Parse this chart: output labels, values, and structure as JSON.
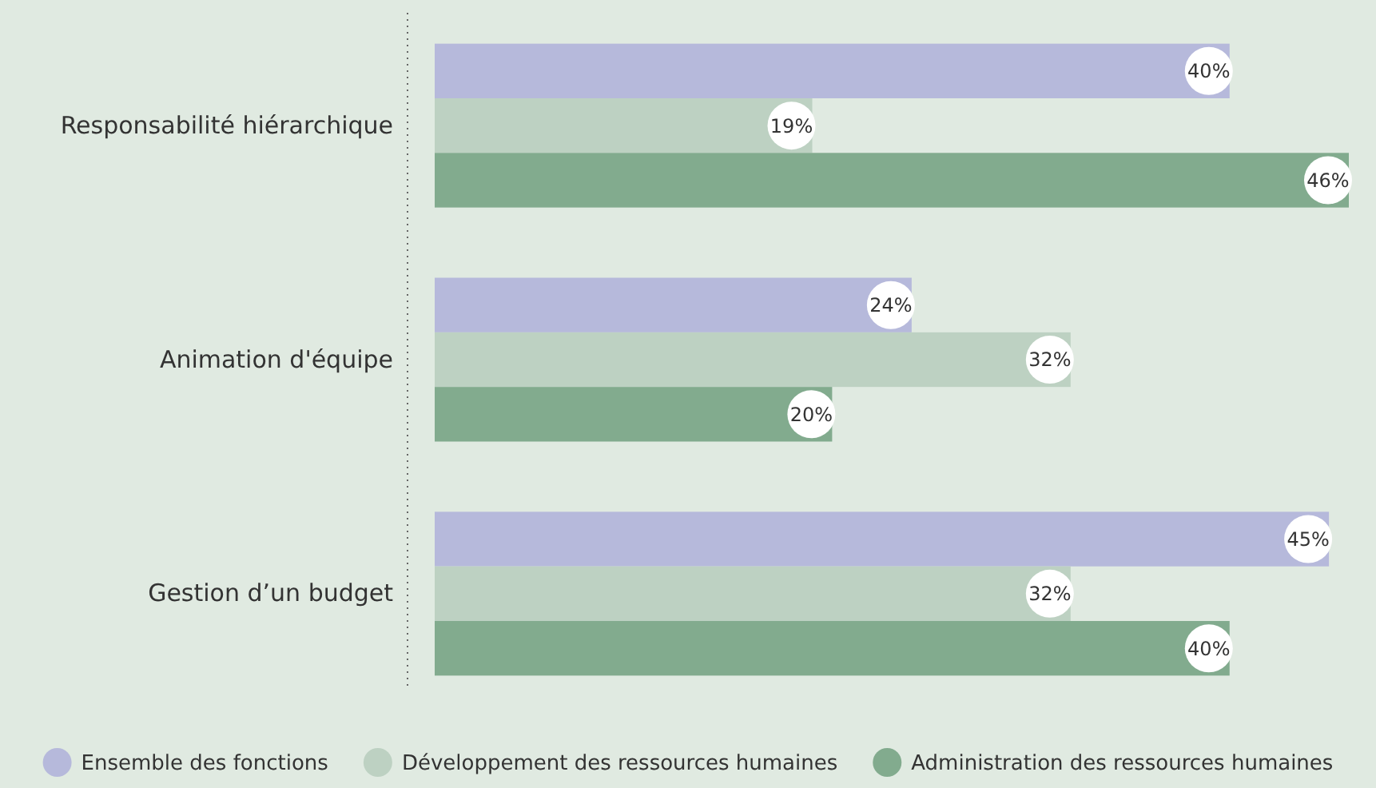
{
  "chart_data": {
    "type": "bar",
    "orientation": "horizontal",
    "categories": [
      "Responsabilité hiérarchique",
      "Animation d'équipe",
      "Gestion d’un budget"
    ],
    "series": [
      {
        "name": "Ensemble des fonctions",
        "color": "#b6b9db",
        "values": [
          40,
          24,
          45
        ],
        "value_labels": [
          "40%",
          "24%",
          "45%"
        ]
      },
      {
        "name": "Développement des ressources humaines",
        "color": "#bdd1c2",
        "values": [
          19,
          32,
          32
        ],
        "value_labels": [
          "19%",
          "32%",
          "32%"
        ]
      },
      {
        "name": "Administration des ressources humaines",
        "color": "#82ab8e",
        "values": [
          46,
          20,
          40
        ],
        "value_labels": [
          "46%",
          "20%",
          "40%"
        ]
      }
    ],
    "legend": "bottom"
  }
}
